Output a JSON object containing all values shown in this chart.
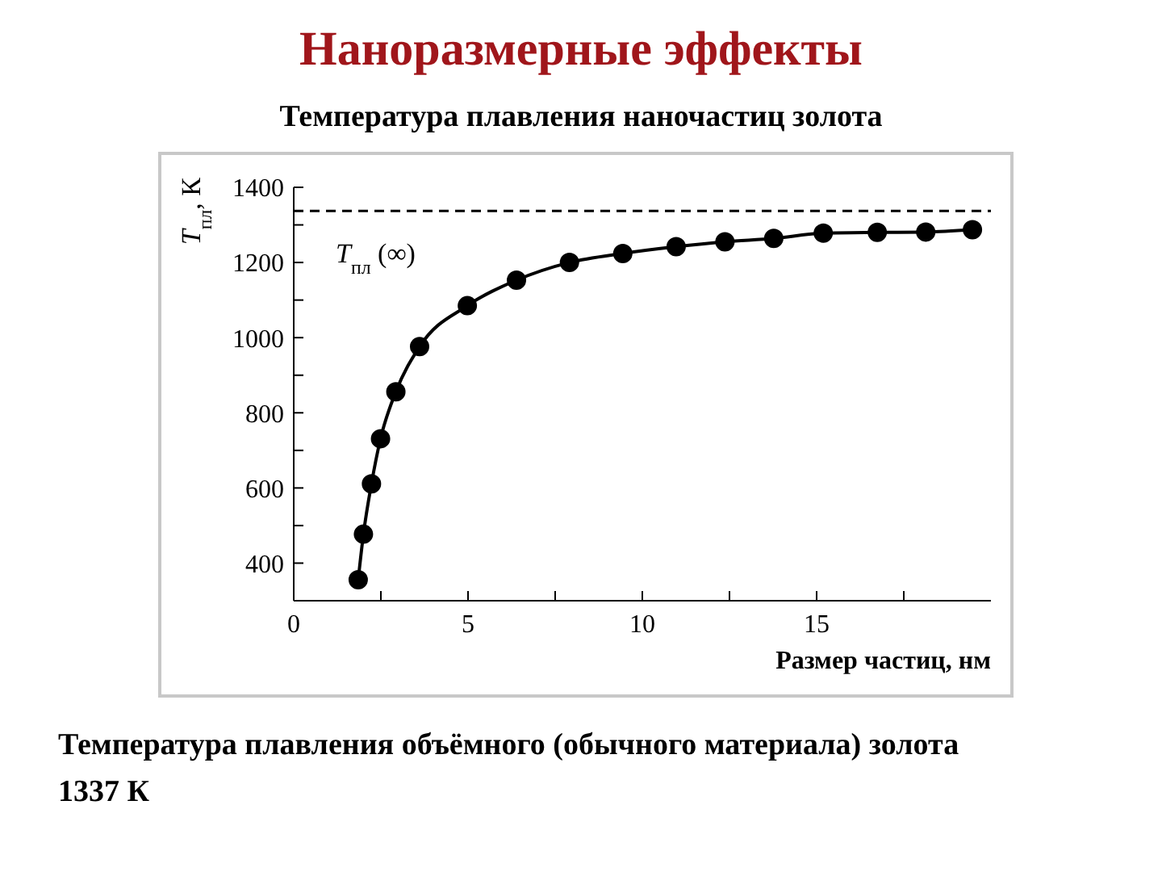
{
  "chart_data": {
    "type": "line",
    "title": "Наноразмерные эффекты",
    "subtitle": "Температура плавления наночастиц золота",
    "xlabel": "Размер частиц, нм",
    "ylabel": "T$_{пл}$, К",
    "x": [
      1.85,
      2.0,
      2.23,
      2.49,
      2.93,
      3.61,
      4.98,
      6.39,
      7.91,
      9.44,
      10.97,
      12.37,
      13.77,
      15.19,
      16.74,
      18.13,
      19.47
    ],
    "series": [
      {
        "color": "#000000",
        "values": [
          356,
          477,
          611,
          731,
          856,
          976,
          1085,
          1153,
          1200,
          1224,
          1242,
          1255,
          1264,
          1278,
          1280,
          1281,
          1287
        ]
      }
    ],
    "marker": "circle",
    "line_style": "solid",
    "xlim": [
      0,
      20
    ],
    "xticks": [
      0,
      {
        "value": 2.5,
        "label": null
      },
      5,
      {
        "value": 7.5,
        "label": null
      },
      10,
      {
        "value": 12.5,
        "label": null
      },
      15,
      {
        "value": 17.5,
        "label": null
      }
    ],
    "ylim": [
      300,
      1400
    ],
    "yticks": [
      400,
      {
        "value": 500,
        "label": null
      },
      600,
      {
        "value": 700,
        "label": null
      },
      800,
      {
        "value": 900,
        "label": null
      },
      1000,
      {
        "value": 1100,
        "label": null
      },
      1200,
      {
        "value": 1300,
        "label": null
      },
      1400
    ],
    "ref_lines": [
      {
        "axis": "y",
        "value": 1337,
        "label": "T$_{пл}$ (∞)",
        "color": "#000000",
        "line_style": "dashed"
      }
    ],
    "annotations": [
      "Температура плавления объёмного (обычного материала) золота 1337 К"
    ]
  }
}
